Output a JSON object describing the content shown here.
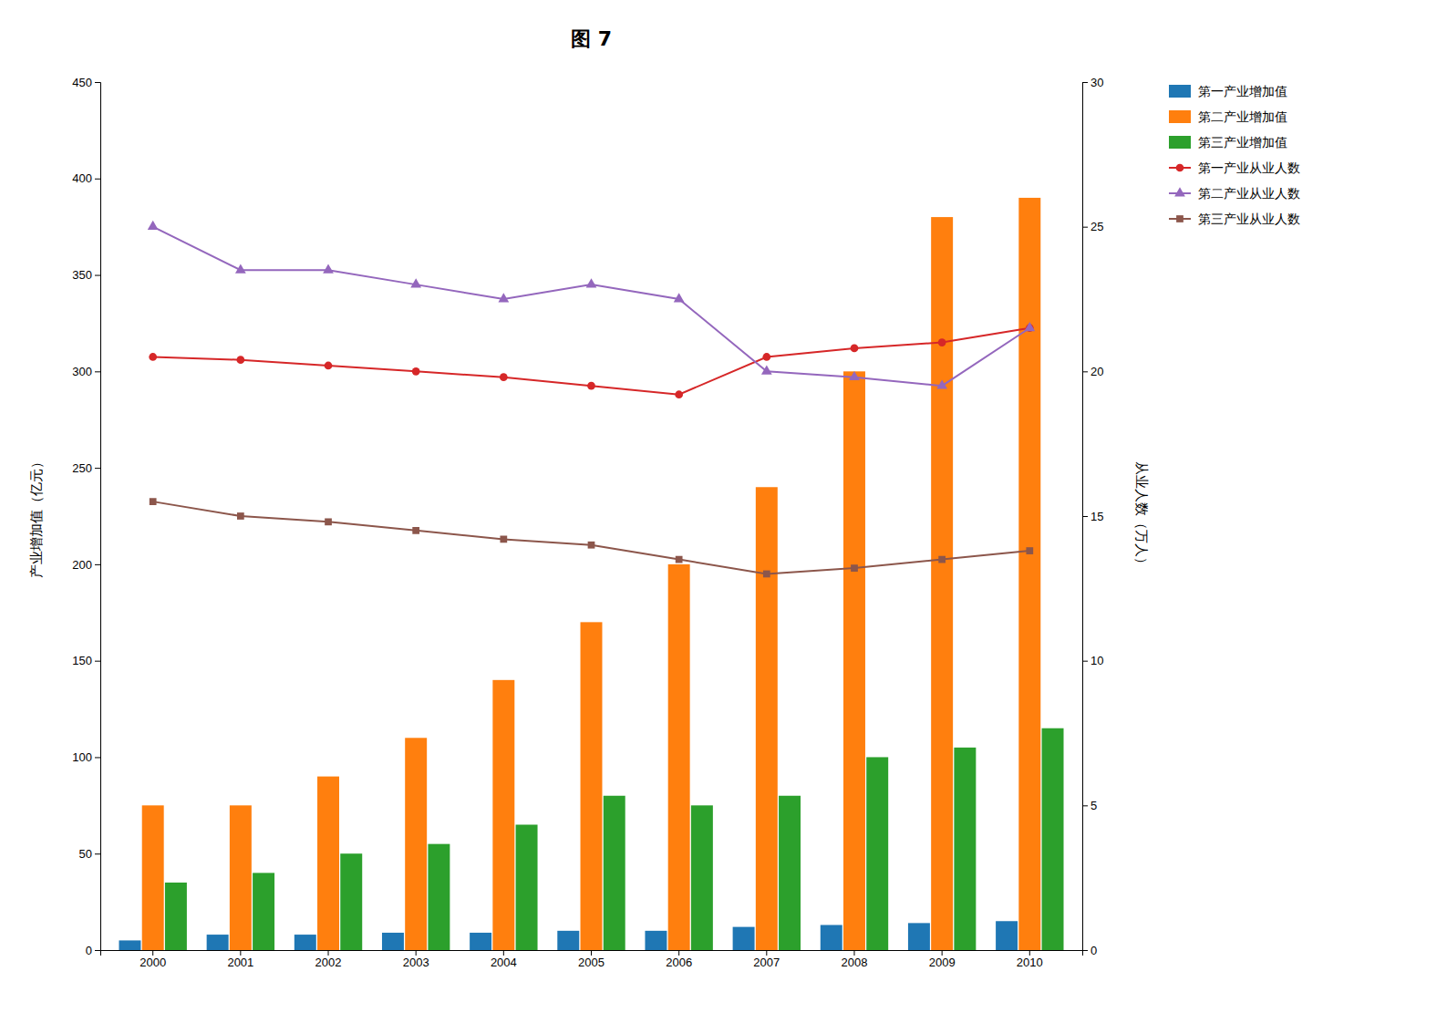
{
  "chart_data": {
    "type": "bar",
    "title": "图 7",
    "categories": [
      "2000",
      "2001",
      "2002",
      "2003",
      "2004",
      "2005",
      "2006",
      "2007",
      "2008",
      "2009",
      "2010"
    ],
    "ylabel": "产业增加值（亿元）",
    "y2label": "从业人数（万人）",
    "ylim": [
      0,
      450
    ],
    "yticks": [
      0,
      50,
      100,
      150,
      200,
      250,
      300,
      350,
      400,
      450
    ],
    "y2lim": [
      0,
      30
    ],
    "y2ticks": [
      0,
      5,
      10,
      15,
      20,
      25,
      30
    ],
    "grid": false,
    "legend": "right",
    "series": [
      {
        "name": "第一产业增加值",
        "type": "bar",
        "values": [
          5,
          8,
          8,
          9,
          9,
          10,
          10,
          12,
          13,
          14,
          15
        ]
      },
      {
        "name": "第二产业增加值",
        "type": "bar",
        "values": [
          75,
          75,
          90,
          110,
          140,
          170,
          200,
          240,
          300,
          380,
          390
        ]
      },
      {
        "name": "第三产业增加值",
        "type": "bar",
        "values": [
          35,
          40,
          50,
          55,
          65,
          80,
          75,
          80,
          100,
          105,
          115
        ]
      },
      {
        "name": "第一产业从业人数",
        "type": "line",
        "axis": "y2",
        "marker": "circle",
        "values": [
          20.5,
          20.4,
          20.2,
          20.0,
          19.8,
          19.5,
          19.2,
          20.5,
          20.8,
          21.0,
          21.5
        ]
      },
      {
        "name": "第二产业从业人数",
        "type": "line",
        "axis": "y2",
        "marker": "triangle",
        "values": [
          25.0,
          23.5,
          23.5,
          23.0,
          22.5,
          23.0,
          22.5,
          20.0,
          19.8,
          19.5,
          21.5
        ]
      },
      {
        "name": "第三产业从业人数",
        "type": "line",
        "axis": "y2",
        "marker": "square",
        "values": [
          15.5,
          15.0,
          14.8,
          14.5,
          14.2,
          14.0,
          13.5,
          13.0,
          13.2,
          13.5,
          13.8
        ]
      }
    ]
  }
}
